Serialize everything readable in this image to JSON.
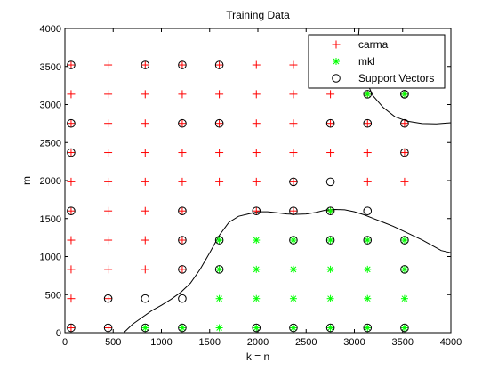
{
  "chart_data": {
    "type": "scatter",
    "title": "Training Data",
    "xlabel": "k = n",
    "ylabel": "m",
    "xlim": [
      0,
      4000
    ],
    "ylim": [
      0,
      4000
    ],
    "xticks": [
      0,
      500,
      1000,
      1500,
      2000,
      2500,
      3000,
      3500,
      4000
    ],
    "yticks": [
      0,
      500,
      1000,
      1500,
      2000,
      2500,
      3000,
      3500,
      4000
    ],
    "grid": false,
    "legend_position": "top-right",
    "series": [
      {
        "name": "carma",
        "marker": "plus",
        "color": "#ff0000",
        "x": [
          64,
          448,
          832,
          1216,
          1600,
          1984,
          2368,
          2752,
          3136,
          3520,
          64,
          448,
          832,
          1216,
          1600,
          1984,
          2368,
          2752,
          3136,
          3520,
          64,
          448,
          832,
          1216,
          1600,
          1984,
          2368,
          2752,
          3136,
          3520,
          64,
          448,
          832,
          1216,
          1600,
          1984,
          2368,
          2752,
          3136,
          3520,
          64,
          448,
          832,
          1216,
          1600,
          1984,
          2368,
          3136,
          3520,
          64,
          448,
          832,
          1216,
          1984,
          2368,
          2752,
          64,
          448,
          832,
          1216,
          64,
          448,
          832,
          1216,
          64,
          448,
          64,
          448
        ],
        "y": [
          3520,
          3520,
          3520,
          3520,
          3520,
          3520,
          3520,
          3520,
          3520,
          3520,
          3136,
          3136,
          3136,
          3136,
          3136,
          3136,
          3136,
          3136,
          3136,
          3136,
          2752,
          2752,
          2752,
          2752,
          2752,
          2752,
          2752,
          2752,
          2752,
          2752,
          2368,
          2368,
          2368,
          2368,
          2368,
          2368,
          2368,
          2368,
          2368,
          2368,
          1984,
          1984,
          1984,
          1984,
          1984,
          1984,
          1984,
          1984,
          1984,
          1600,
          1600,
          1600,
          1600,
          1600,
          1600,
          1600,
          1216,
          1216,
          1216,
          1216,
          832,
          832,
          832,
          832,
          448,
          448,
          64,
          64
        ]
      },
      {
        "name": "mkl",
        "marker": "star",
        "color": "#00ff00",
        "x": [
          2752,
          3136,
          3520,
          1600,
          1984,
          2368,
          2752,
          3136,
          3520,
          2752,
          1600,
          1984,
          2368,
          2752,
          3136,
          3520,
          1600,
          1984,
          2368,
          2752,
          3136,
          3520,
          832,
          1216,
          1600,
          1984,
          2368,
          2752,
          3136,
          3520
        ],
        "y": [
          3520,
          3136,
          3136,
          1216,
          1216,
          1216,
          1216,
          1216,
          1216,
          1600,
          832,
          832,
          832,
          832,
          832,
          832,
          448,
          448,
          448,
          448,
          448,
          448,
          64,
          64,
          64,
          64,
          64,
          64,
          64,
          64
        ]
      },
      {
        "name": "Support Vectors",
        "marker": "circle",
        "color": "#000000",
        "x": [
          64,
          832,
          1216,
          1600,
          3136,
          3520,
          3520,
          64,
          1216,
          1600,
          2752,
          3136,
          3520,
          64,
          3520,
          2368,
          2752,
          64,
          1216,
          1984,
          2368,
          2752,
          3136,
          1216,
          1600,
          2368,
          2752,
          3136,
          3520,
          1216,
          1600,
          3520,
          448,
          832,
          1216,
          64,
          448,
          832,
          1216,
          1984,
          2368,
          2752,
          3136,
          3520
        ],
        "y": [
          3520,
          3520,
          3520,
          3520,
          3136,
          3136,
          3136,
          2752,
          2752,
          2752,
          2752,
          2752,
          2752,
          2368,
          2368,
          1984,
          1984,
          1600,
          1600,
          1600,
          1600,
          1600,
          1600,
          1216,
          1216,
          1216,
          1216,
          1216,
          1216,
          832,
          832,
          832,
          448,
          448,
          448,
          64,
          64,
          64,
          64,
          64,
          64,
          64,
          64,
          64
        ]
      }
    ],
    "boundaries": [
      {
        "x": [
          610,
          700,
          800,
          900,
          1000,
          1100,
          1200,
          1300,
          1400,
          1500,
          1600,
          1700,
          1800,
          1900,
          2000,
          2100,
          2200,
          2300,
          2400,
          2500,
          2600,
          2700,
          2800,
          2900,
          3000,
          3100,
          3200,
          3300,
          3400,
          3500,
          3600,
          3700,
          3800,
          3900,
          4000
        ],
        "y": [
          0,
          110,
          200,
          290,
          360,
          440,
          530,
          650,
          830,
          1050,
          1280,
          1450,
          1530,
          1560,
          1590,
          1590,
          1575,
          1560,
          1555,
          1560,
          1580,
          1610,
          1620,
          1615,
          1590,
          1550,
          1500,
          1450,
          1400,
          1340,
          1280,
          1220,
          1150,
          1080,
          1050
        ]
      },
      {
        "x": [
          3050,
          3040,
          3060,
          3110,
          3190,
          3300,
          3420,
          3550,
          3700,
          3850,
          4000
        ],
        "y": [
          4000,
          3860,
          3600,
          3350,
          3120,
          2960,
          2840,
          2780,
          2750,
          2745,
          2760
        ]
      }
    ]
  }
}
